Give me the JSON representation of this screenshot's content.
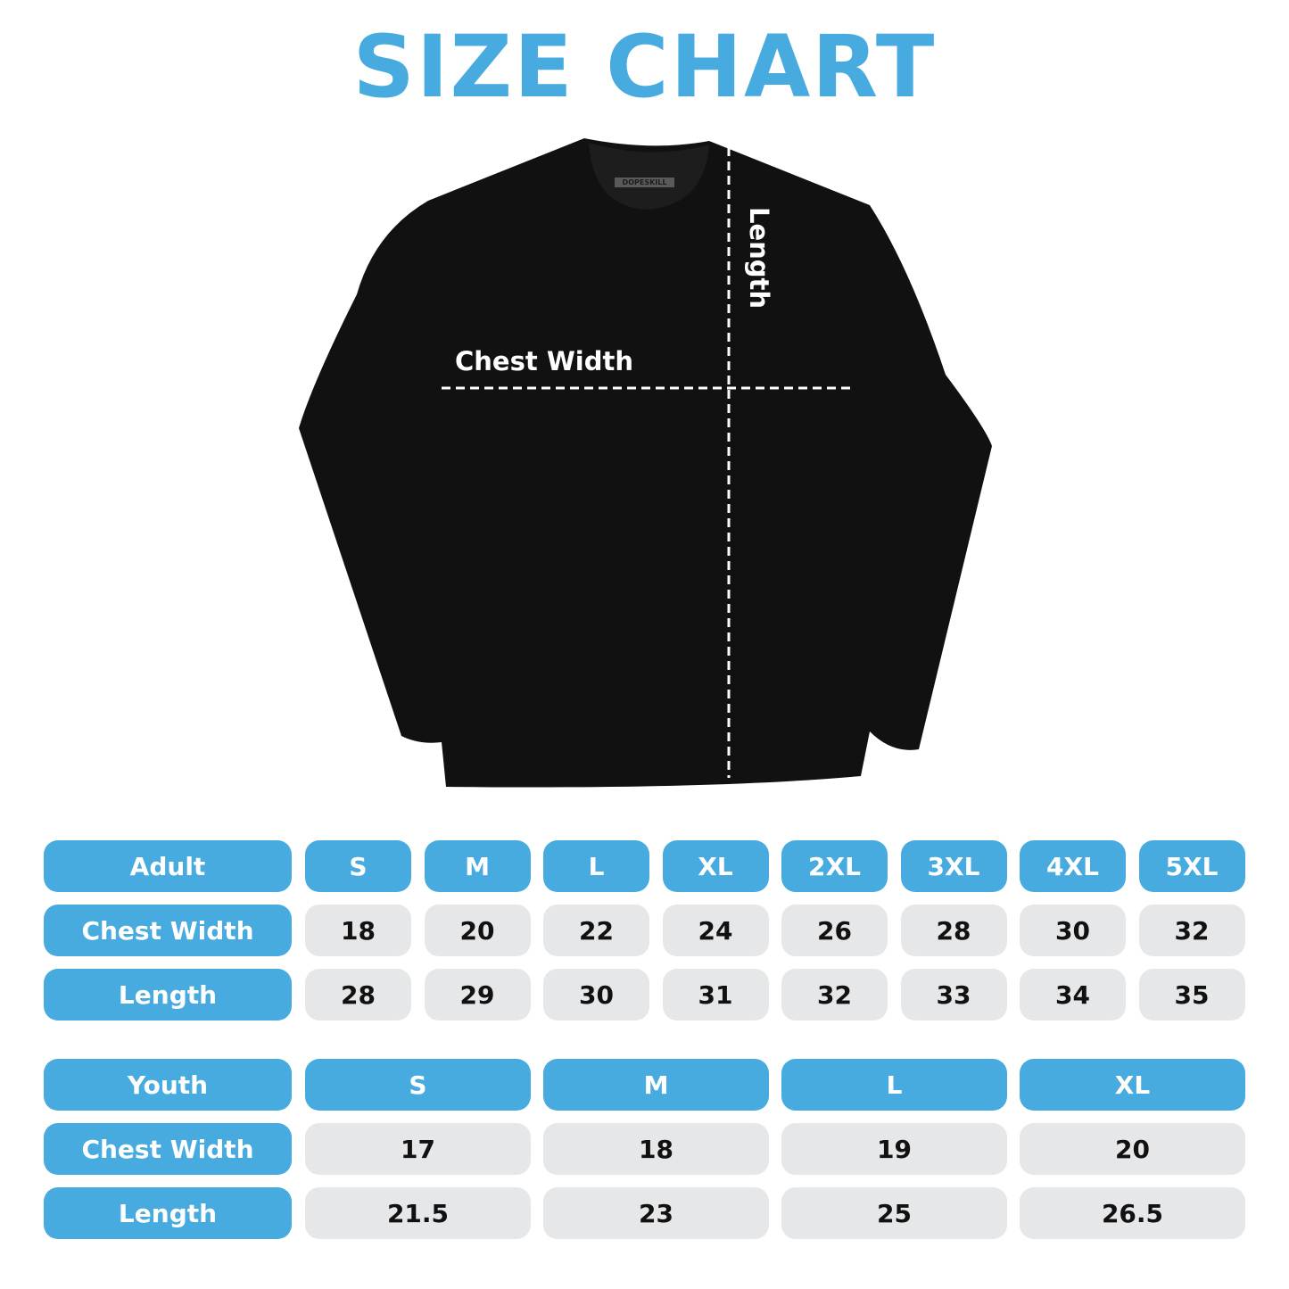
{
  "title": "SIZE CHART",
  "brand_tag": "DOPESKILL",
  "shirt_labels": {
    "chest": "Chest Width",
    "length": "Length"
  },
  "colors": {
    "accent": "#48abe0",
    "cell": "#e6e7e8",
    "shirt": "#111111"
  },
  "adult": {
    "header": "Adult",
    "sizes": [
      "S",
      "M",
      "L",
      "XL",
      "2XL",
      "3XL",
      "4XL",
      "5XL"
    ],
    "rows": [
      {
        "label": "Chest Width",
        "values": [
          "18",
          "20",
          "22",
          "24",
          "26",
          "28",
          "30",
          "32"
        ]
      },
      {
        "label": "Length",
        "values": [
          "28",
          "29",
          "30",
          "31",
          "32",
          "33",
          "34",
          "35"
        ]
      }
    ]
  },
  "youth": {
    "header": "Youth",
    "sizes": [
      "S",
      "M",
      "L",
      "XL"
    ],
    "rows": [
      {
        "label": "Chest Width",
        "values": [
          "17",
          "18",
          "19",
          "20"
        ]
      },
      {
        "label": "Length",
        "values": [
          "21.5",
          "23",
          "25",
          "26.5"
        ]
      }
    ]
  }
}
